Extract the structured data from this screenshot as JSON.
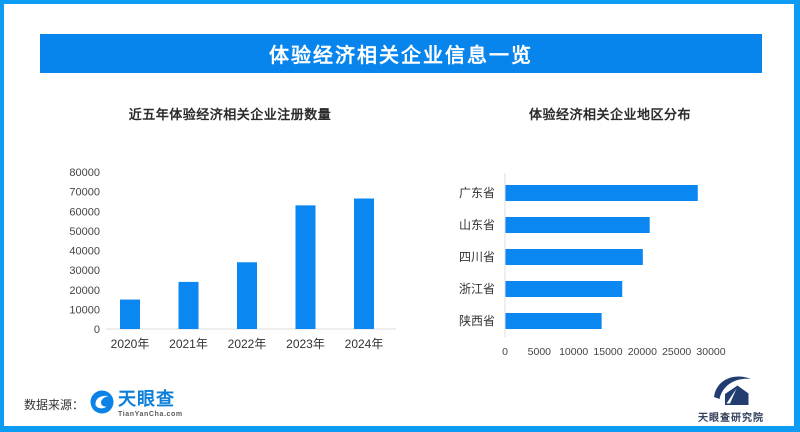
{
  "page": {
    "title": "体验经济相关企业信息一览",
    "source_label": "数据来源：",
    "tianyancha": {
      "name": "天眼查",
      "domain": "TianYanCha.com"
    },
    "institute": "天眼查研究院"
  },
  "colors": {
    "banner_blue": "#0885EC",
    "bar_blue": "#0A87F0",
    "border_blue": "#0C9CF4",
    "axis_label": "#444444",
    "axis_line": "#dedede",
    "logo_blue": "#0B7FD9",
    "logo_navy": "#223E70"
  },
  "chart_data": [
    {
      "type": "bar",
      "title": "近五年体验经济相关企业注册数量",
      "categories": [
        "2020年",
        "2021年",
        "2022年",
        "2023年",
        "2024年"
      ],
      "values": [
        15000,
        24000,
        34000,
        63000,
        66500
      ],
      "xlabel": "",
      "ylabel": "",
      "ylim": [
        0,
        80000
      ],
      "yticks": [
        0,
        10000,
        20000,
        30000,
        40000,
        50000,
        60000,
        70000,
        80000
      ],
      "grid": false,
      "legend": false,
      "bar_color": "#0A87F0"
    },
    {
      "type": "bar-horizontal",
      "title": "体验经济相关企业地区分布",
      "categories": [
        "广东省",
        "山东省",
        "四川省",
        "浙江省",
        "陕西省"
      ],
      "values": [
        28000,
        21000,
        20000,
        17000,
        14000
      ],
      "xlabel": "",
      "ylabel": "",
      "xlim": [
        0,
        30000
      ],
      "xticks": [
        0,
        5000,
        10000,
        15000,
        20000,
        25000,
        30000
      ],
      "grid": false,
      "legend": false,
      "bar_color": "#0A87F0"
    }
  ]
}
